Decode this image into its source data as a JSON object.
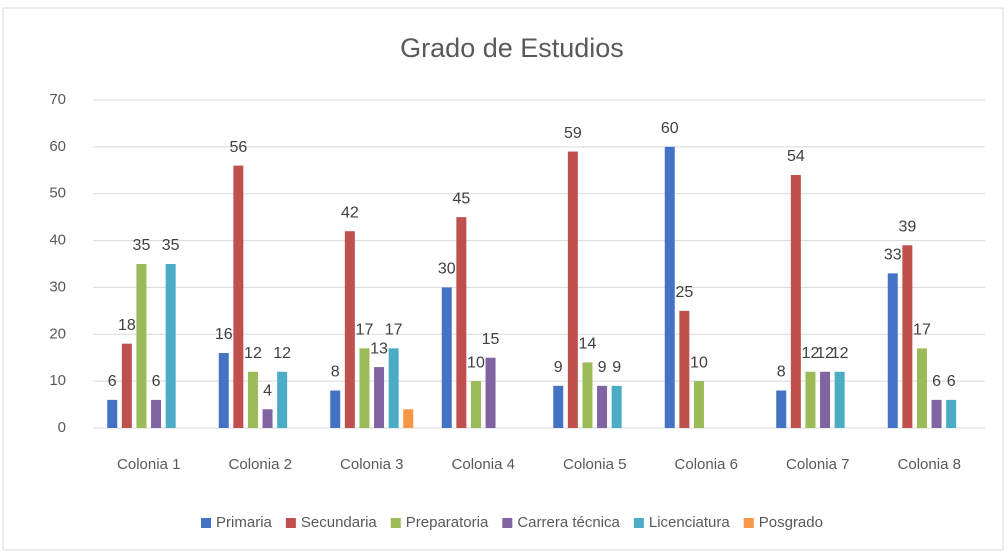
{
  "chart_data": {
    "type": "bar",
    "title": "Grado de Estudios",
    "categories": [
      "Colonia 1",
      "Colonia 2",
      "Colonia 3",
      "Colonia 4",
      "Colonia 5",
      "Colonia 6",
      "Colonia 7",
      "Colonia 8"
    ],
    "series": [
      {
        "name": "Primaria",
        "color": "#4472c4",
        "values": [
          6,
          16,
          8,
          30,
          9,
          60,
          8,
          33
        ]
      },
      {
        "name": "Secundaria",
        "color": "#c0504d",
        "values": [
          18,
          56,
          42,
          45,
          59,
          25,
          54,
          39
        ]
      },
      {
        "name": "Preparatoria",
        "color": "#9bbb59",
        "values": [
          35,
          12,
          17,
          10,
          14,
          10,
          12,
          17
        ]
      },
      {
        "name": "Carrera técnica",
        "color": "#8064a2",
        "values": [
          6,
          4,
          13,
          15,
          9,
          null,
          12,
          6
        ]
      },
      {
        "name": "Licenciatura",
        "color": "#4bacc6",
        "values": [
          35,
          12,
          17,
          null,
          9,
          null,
          12,
          6
        ]
      },
      {
        "name": "Posgrado",
        "color": "#f79646",
        "values": [
          null,
          null,
          4,
          null,
          null,
          null,
          null,
          null
        ],
        "data_labels": false
      }
    ],
    "ylim": [
      0,
      70
    ],
    "yticks": [
      0,
      10,
      20,
      30,
      40,
      50,
      60,
      70
    ],
    "grid": true,
    "legend": "bottom"
  }
}
